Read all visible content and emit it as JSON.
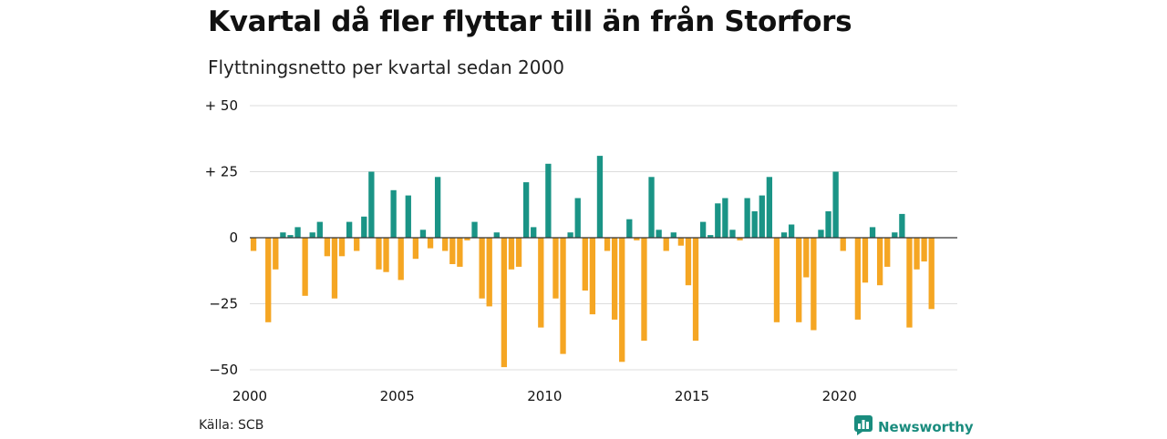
{
  "header": {
    "title": "Kvartal då fler flyttar till än från Storfors",
    "subtitle": "Flyttningsnetto per kvartal sedan 2000"
  },
  "footer": {
    "source": "Källa: SCB",
    "brand": "Newsworthy",
    "brand_icon": "bar-chart-logo-icon"
  },
  "colors": {
    "positive": "#1a9486",
    "negative": "#f5a623",
    "brand": "#1a8c7e",
    "grid": "#dddddd",
    "zero_line": "#333333"
  },
  "chart_data": {
    "type": "bar",
    "title": "Kvartal då fler flyttar till än från Storfors",
    "subtitle": "Flyttningsnetto per kvartal sedan 2000",
    "x_start": "2000Q1",
    "categories": [
      "2000Q1",
      "2000Q2",
      "2000Q3",
      "2000Q4",
      "2001Q1",
      "2001Q2",
      "2001Q3",
      "2001Q4",
      "2002Q1",
      "2002Q2",
      "2002Q3",
      "2002Q4",
      "2003Q1",
      "2003Q2",
      "2003Q3",
      "2003Q4",
      "2004Q1",
      "2004Q2",
      "2004Q3",
      "2004Q4",
      "2005Q1",
      "2005Q2",
      "2005Q3",
      "2005Q4",
      "2006Q1",
      "2006Q2",
      "2006Q3",
      "2006Q4",
      "2007Q1",
      "2007Q2",
      "2007Q3",
      "2007Q4",
      "2008Q1",
      "2008Q2",
      "2008Q3",
      "2008Q4",
      "2009Q1",
      "2009Q2",
      "2009Q3",
      "2009Q4",
      "2010Q1",
      "2010Q2",
      "2010Q3",
      "2010Q4",
      "2011Q1",
      "2011Q2",
      "2011Q3",
      "2011Q4",
      "2012Q1",
      "2012Q2",
      "2012Q3",
      "2012Q4",
      "2013Q1",
      "2013Q2",
      "2013Q3",
      "2013Q4",
      "2014Q1",
      "2014Q2",
      "2014Q3",
      "2014Q4",
      "2015Q1",
      "2015Q2",
      "2015Q3",
      "2015Q4",
      "2016Q1",
      "2016Q2",
      "2016Q3",
      "2016Q4",
      "2017Q1",
      "2017Q2",
      "2017Q3",
      "2017Q4",
      "2018Q1",
      "2018Q2",
      "2018Q3",
      "2018Q4",
      "2019Q1",
      "2019Q2",
      "2019Q3",
      "2019Q4",
      "2020Q1",
      "2020Q2",
      "2020Q3",
      "2020Q4",
      "2021Q1",
      "2021Q2",
      "2021Q3",
      "2021Q4",
      "2022Q1",
      "2022Q2",
      "2022Q3",
      "2022Q4",
      "2023Q1",
      "2023Q2",
      "2023Q3",
      "2023Q4"
    ],
    "values": [
      -5,
      0,
      -32,
      -12,
      2,
      1,
      4,
      -22,
      2,
      6,
      -7,
      -23,
      -7,
      6,
      -5,
      8,
      25,
      -12,
      -13,
      18,
      -16,
      16,
      -8,
      3,
      -4,
      23,
      -5,
      -10,
      -11,
      -1,
      6,
      -23,
      -26,
      2,
      -49,
      -12,
      -11,
      21,
      4,
      -34,
      28,
      -23,
      -44,
      2,
      15,
      -20,
      -29,
      31,
      -5,
      -31,
      -47,
      7,
      -1,
      -39,
      23,
      3,
      -5,
      2,
      -3,
      -18,
      -39,
      6,
      1,
      13,
      15,
      3,
      -1,
      15,
      10,
      16,
      23,
      -32,
      2,
      5,
      -32,
      -15,
      -35,
      3,
      10,
      25,
      -5,
      0,
      -31,
      -17,
      4,
      -18,
      -11,
      2,
      9,
      -34,
      -12,
      -9,
      -27,
      0,
      0,
      0
    ],
    "ylim": [
      -50,
      50
    ],
    "yticks": [
      {
        "value": 50,
        "label": "+ 50"
      },
      {
        "value": 25,
        "label": "+ 25"
      },
      {
        "value": 0,
        "label": "0"
      },
      {
        "value": -25,
        "label": "−25"
      },
      {
        "value": -50,
        "label": "−50"
      }
    ],
    "xticks": [
      {
        "year": 2000,
        "label": "2000"
      },
      {
        "year": 2005,
        "label": "2005"
      },
      {
        "year": 2010,
        "label": "2010"
      },
      {
        "year": 2015,
        "label": "2015"
      },
      {
        "year": 2020,
        "label": "2020"
      }
    ],
    "grid": true,
    "legend": "none"
  }
}
